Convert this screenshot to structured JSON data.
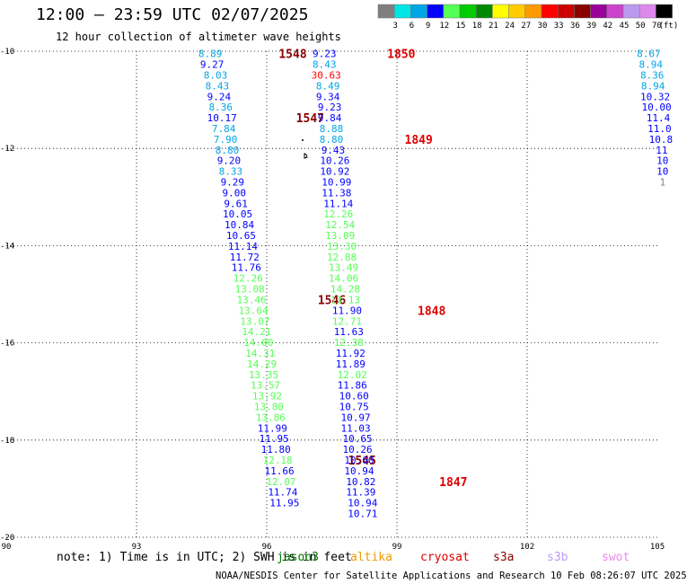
{
  "header": {
    "title": "12:00 – 23:59 UTC 02/07/2025",
    "subtitle": "12 hour collection of altimeter wave heights"
  },
  "footer": {
    "note": "note:  1) Time is in UTC; 2) SWH is in feet",
    "credit": "NOAA/NESDIS Center for Satellite Applications and Research   10 Feb 08:26:07 UTC 2025",
    "satellites": [
      {
        "name": "jason3",
        "color": "#007700"
      },
      {
        "name": "altika",
        "color": "#ee9900"
      },
      {
        "name": "cryosat",
        "color": "#dd0000"
      },
      {
        "name": "s3a",
        "color": "#880000"
      },
      {
        "name": "s3b",
        "color": "#bb99ee"
      },
      {
        "name": "swot",
        "color": "#ee88ee"
      }
    ]
  },
  "colorbar": {
    "unit": "(ft)",
    "bins": [
      {
        "label": "",
        "color": "#7f7f7f"
      },
      {
        "label": "3",
        "color": "#00e5e5"
      },
      {
        "label": "6",
        "color": "#00a5e5"
      },
      {
        "label": "9",
        "color": "#0000ff"
      },
      {
        "label": "12",
        "color": "#55ff55"
      },
      {
        "label": "15",
        "color": "#00cc00"
      },
      {
        "label": "18",
        "color": "#008800"
      },
      {
        "label": "21",
        "color": "#ffff00"
      },
      {
        "label": "24",
        "color": "#ffcc00"
      },
      {
        "label": "27",
        "color": "#ff9900"
      },
      {
        "label": "30",
        "color": "#ff0000"
      },
      {
        "label": "33",
        "color": "#cc0000"
      },
      {
        "label": "36",
        "color": "#880000"
      },
      {
        "label": "39",
        "color": "#990099"
      },
      {
        "label": "42",
        "color": "#cc44cc"
      },
      {
        "label": "45",
        "color": "#bb99ee"
      },
      {
        "label": "50",
        "color": "#dd88ee"
      },
      {
        "label": "70",
        "color": "#000000"
      }
    ]
  },
  "chart_data": {
    "type": "scatter",
    "x_ticks": [
      "90",
      "93",
      "96",
      "99",
      "102",
      "105"
    ],
    "y_ticks": [
      "-10",
      "-12",
      "-14",
      "-16",
      "-18",
      "-20"
    ],
    "xlim": [
      90,
      105
    ],
    "ylim": [
      -20,
      -10
    ],
    "grid": true,
    "tracks": [
      {
        "satellite": "s3a",
        "values": [
          "8.89",
          "9.27",
          "8.03",
          "8.43",
          "9.24",
          "8.36",
          "10.17",
          "7.84",
          "7.90",
          "8.80",
          "9.20",
          "8.33",
          "9.29",
          "9.00",
          "9.61",
          "10.05",
          "10.84",
          "10.65",
          "11.14",
          "11.72",
          "11.76",
          "12.26",
          "13.08",
          "13.46",
          "13.64",
          "13.07",
          "14.21",
          "14.00",
          "14.31",
          "14.29",
          "13.35",
          "13.57",
          "13.92",
          "13.80",
          "13.86",
          "11.99",
          "11.95",
          "11.80",
          "12.18",
          "11.66",
          "12.07",
          "11.74",
          "11.95"
        ],
        "points": [
          {
            "lon": 94.7,
            "lat": -10.05
          },
          {
            "lon": 94.74,
            "lat": -10.27
          },
          {
            "lon": 94.82,
            "lat": -10.49
          },
          {
            "lon": 94.86,
            "lat": -10.71
          },
          {
            "lon": 94.9,
            "lat": -10.93
          },
          {
            "lon": 94.94,
            "lat": -11.15
          },
          {
            "lon": 94.97,
            "lat": -11.37
          },
          {
            "lon": 95.01,
            "lat": -11.59
          },
          {
            "lon": 95.05,
            "lat": -11.81
          },
          {
            "lon": 95.09,
            "lat": -12.03
          },
          {
            "lon": 95.13,
            "lat": -12.25
          },
          {
            "lon": 95.17,
            "lat": -12.47
          },
          {
            "lon": 95.21,
            "lat": -12.69
          },
          {
            "lon": 95.25,
            "lat": -12.91
          },
          {
            "lon": 95.29,
            "lat": -13.13
          },
          {
            "lon": 95.33,
            "lat": -13.35
          },
          {
            "lon": 95.37,
            "lat": -13.57
          },
          {
            "lon": 95.41,
            "lat": -13.79
          },
          {
            "lon": 95.45,
            "lat": -14.01
          },
          {
            "lon": 95.49,
            "lat": -14.23
          },
          {
            "lon": 95.53,
            "lat": -14.45
          },
          {
            "lon": 95.57,
            "lat": -14.67
          },
          {
            "lon": 95.61,
            "lat": -14.89
          },
          {
            "lon": 95.65,
            "lat": -15.11
          },
          {
            "lon": 95.69,
            "lat": -15.33
          },
          {
            "lon": 95.73,
            "lat": -15.55
          },
          {
            "lon": 95.77,
            "lat": -15.77
          },
          {
            "lon": 95.81,
            "lat": -15.99
          },
          {
            "lon": 95.85,
            "lat": -16.21
          },
          {
            "lon": 95.89,
            "lat": -16.43
          },
          {
            "lon": 95.93,
            "lat": -16.65
          },
          {
            "lon": 95.97,
            "lat": -16.87
          },
          {
            "lon": 96.01,
            "lat": -17.09
          },
          {
            "lon": 96.05,
            "lat": -17.31
          },
          {
            "lon": 96.09,
            "lat": -17.53
          },
          {
            "lon": 96.13,
            "lat": -17.75
          },
          {
            "lon": 96.17,
            "lat": -17.97
          },
          {
            "lon": 96.21,
            "lat": -18.19
          },
          {
            "lon": 96.25,
            "lat": -18.41
          },
          {
            "lon": 96.29,
            "lat": -18.63
          },
          {
            "lon": 96.33,
            "lat": -18.85
          },
          {
            "lon": 96.37,
            "lat": -19.07
          },
          {
            "lon": 96.41,
            "lat": -19.29
          }
        ],
        "time_labels": [
          {
            "text": "1548",
            "lon": 96.6,
            "lat": -10.05
          },
          {
            "text": "1547",
            "lon": 97.0,
            "lat": -11.37
          },
          {
            "text": "1546",
            "lon": 97.5,
            "lat": -15.11
          },
          {
            "text": "1545",
            "lon": 98.2,
            "lat": -18.41
          }
        ]
      },
      {
        "satellite": "cryosat",
        "values": [
          "9.23",
          "8.43",
          "30.63",
          "8.49",
          "9.34",
          "9.23",
          "9.84",
          "8.88",
          "8.80",
          "9.43",
          "10.26",
          "10.92",
          "10.99",
          "11.38",
          "11.14",
          "12.26",
          "12.54",
          "13.09",
          "13.30",
          "12.88",
          "13.49",
          "14.06",
          "14.28",
          "13.13",
          "11.90",
          "12.71",
          "11.63",
          "12.38",
          "11.92",
          "11.89",
          "12.02",
          "11.86",
          "10.60",
          "10.75",
          "10.97",
          "11.03",
          "10.65",
          "10.26",
          "10.60",
          "10.94",
          "10.82",
          "11.39",
          "10.94",
          "10.71"
        ],
        "points": [
          {
            "lon": 97.33,
            "lat": -10.05
          },
          {
            "lon": 97.33,
            "lat": -10.27
          },
          {
            "lon": 97.37,
            "lat": -10.49
          },
          {
            "lon": 97.41,
            "lat": -10.71
          },
          {
            "lon": 97.41,
            "lat": -10.93
          },
          {
            "lon": 97.45,
            "lat": -11.15
          },
          {
            "lon": 97.45,
            "lat": -11.37
          },
          {
            "lon": 97.49,
            "lat": -11.59
          },
          {
            "lon": 97.49,
            "lat": -11.81
          },
          {
            "lon": 97.53,
            "lat": -12.03
          },
          {
            "lon": 97.57,
            "lat": -12.25
          },
          {
            "lon": 97.57,
            "lat": -12.47
          },
          {
            "lon": 97.61,
            "lat": -12.69
          },
          {
            "lon": 97.61,
            "lat": -12.91
          },
          {
            "lon": 97.65,
            "lat": -13.13
          },
          {
            "lon": 97.65,
            "lat": -13.35
          },
          {
            "lon": 97.69,
            "lat": -13.57
          },
          {
            "lon": 97.69,
            "lat": -13.79
          },
          {
            "lon": 97.73,
            "lat": -14.01
          },
          {
            "lon": 97.73,
            "lat": -14.23
          },
          {
            "lon": 97.77,
            "lat": -14.45
          },
          {
            "lon": 97.77,
            "lat": -14.67
          },
          {
            "lon": 97.81,
            "lat": -14.89
          },
          {
            "lon": 97.81,
            "lat": -15.11
          },
          {
            "lon": 97.85,
            "lat": -15.33
          },
          {
            "lon": 97.85,
            "lat": -15.55
          },
          {
            "lon": 97.89,
            "lat": -15.77
          },
          {
            "lon": 97.89,
            "lat": -15.99
          },
          {
            "lon": 97.93,
            "lat": -16.21
          },
          {
            "lon": 97.93,
            "lat": -16.43
          },
          {
            "lon": 97.97,
            "lat": -16.65
          },
          {
            "lon": 97.97,
            "lat": -16.87
          },
          {
            "lon": 98.01,
            "lat": -17.09
          },
          {
            "lon": 98.01,
            "lat": -17.31
          },
          {
            "lon": 98.05,
            "lat": -17.53
          },
          {
            "lon": 98.05,
            "lat": -17.75
          },
          {
            "lon": 98.09,
            "lat": -17.97
          },
          {
            "lon": 98.09,
            "lat": -18.19
          },
          {
            "lon": 98.13,
            "lat": -18.41
          },
          {
            "lon": 98.13,
            "lat": -18.63
          },
          {
            "lon": 98.17,
            "lat": -18.85
          },
          {
            "lon": 98.17,
            "lat": -19.07
          },
          {
            "lon": 98.21,
            "lat": -19.29
          },
          {
            "lon": 98.21,
            "lat": -19.51
          }
        ],
        "time_labels": [
          {
            "text": "1850",
            "lon": 99.1,
            "lat": -10.05
          },
          {
            "text": "1849",
            "lon": 99.5,
            "lat": -11.81
          },
          {
            "text": "1848",
            "lon": 99.8,
            "lat": -15.33
          },
          {
            "text": "1847",
            "lon": 100.3,
            "lat": -18.85
          }
        ]
      },
      {
        "satellite": "s3a",
        "values": [
          "8.67",
          "8.94",
          "8.36",
          "8.94",
          "10.32",
          "10.00",
          "11.4",
          "11.0",
          "10.8",
          "11",
          "10",
          "10",
          "1"
        ],
        "points": [
          {
            "lon": 104.8,
            "lat": -10.05
          },
          {
            "lon": 104.85,
            "lat": -10.27
          },
          {
            "lon": 104.88,
            "lat": -10.49
          },
          {
            "lon": 104.9,
            "lat": -10.71
          },
          {
            "lon": 104.95,
            "lat": -10.93
          },
          {
            "lon": 104.98,
            "lat": -11.15
          },
          {
            "lon": 105.02,
            "lat": -11.37
          },
          {
            "lon": 105.05,
            "lat": -11.59
          },
          {
            "lon": 105.08,
            "lat": -11.81
          },
          {
            "lon": 105.1,
            "lat": -12.03
          },
          {
            "lon": 105.12,
            "lat": -12.25
          },
          {
            "lon": 105.12,
            "lat": -12.47
          },
          {
            "lon": 105.12,
            "lat": -12.69
          }
        ],
        "time_labels": []
      }
    ]
  }
}
